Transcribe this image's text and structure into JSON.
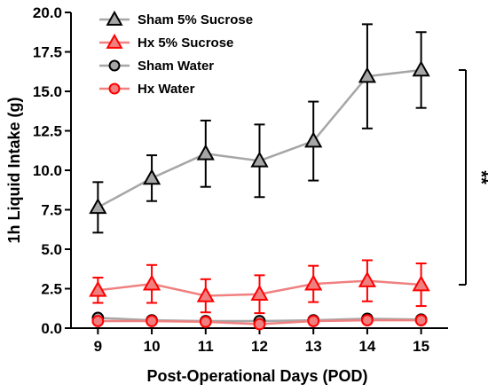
{
  "chart_data": {
    "type": "line",
    "xlabel": "Post-Operational Days (POD)",
    "ylabel": "1h Liquid Intake (g)",
    "ylim": [
      0,
      20
    ],
    "xlim": [
      8.5,
      15.5
    ],
    "x": [
      9,
      10,
      11,
      12,
      13,
      14,
      15
    ],
    "x_tick_labels": [
      "9",
      "10",
      "11",
      "12",
      "13",
      "14",
      "15"
    ],
    "y_ticks": [
      0,
      2.5,
      5,
      7.5,
      10,
      12.5,
      15,
      17.5,
      20
    ],
    "y_tick_labels": [
      "0.0",
      "2.5",
      "5.0",
      "7.5",
      "10.0",
      "12.5",
      "15.0",
      "17.5",
      "20.0"
    ],
    "grid": false,
    "legend_position": "top-left",
    "series": [
      {
        "name": "Sham 5% Sucrose",
        "marker": "triangle",
        "line_color": "#a6a6a6",
        "marker_color": "#000000",
        "values": [
          7.65,
          9.5,
          11.05,
          10.6,
          11.85,
          15.95,
          16.35
        ],
        "error": [
          1.6,
          1.45,
          2.1,
          2.3,
          2.5,
          3.3,
          2.4
        ]
      },
      {
        "name": "Hx 5% Sucrose",
        "marker": "triangle",
        "line_color": "#f08080",
        "marker_color": "#ff0000",
        "values": [
          2.4,
          2.8,
          2.05,
          2.15,
          2.8,
          3.0,
          2.75
        ],
        "error": [
          0.8,
          1.2,
          1.05,
          1.2,
          1.15,
          1.3,
          1.35
        ]
      },
      {
        "name": "Sham Water",
        "marker": "circle",
        "line_color": "#a6a6a6",
        "marker_color": "#000000",
        "values": [
          0.65,
          0.5,
          0.45,
          0.45,
          0.5,
          0.6,
          0.55
        ],
        "error": [
          0.1,
          0.1,
          0.1,
          0.1,
          0.1,
          0.1,
          0.1
        ]
      },
      {
        "name": "Hx Water",
        "marker": "circle",
        "line_color": "#f08080",
        "marker_color": "#ff0000",
        "values": [
          0.45,
          0.45,
          0.4,
          0.25,
          0.45,
          0.5,
          0.5
        ],
        "error": [
          0.1,
          0.1,
          0.1,
          0.1,
          0.1,
          0.1,
          0.1
        ]
      }
    ],
    "annotations": [
      {
        "text": "**",
        "bracket_between": [
          "Sham 5% Sucrose",
          "Hx 5% Sucrose"
        ],
        "at_x": 15
      }
    ]
  }
}
